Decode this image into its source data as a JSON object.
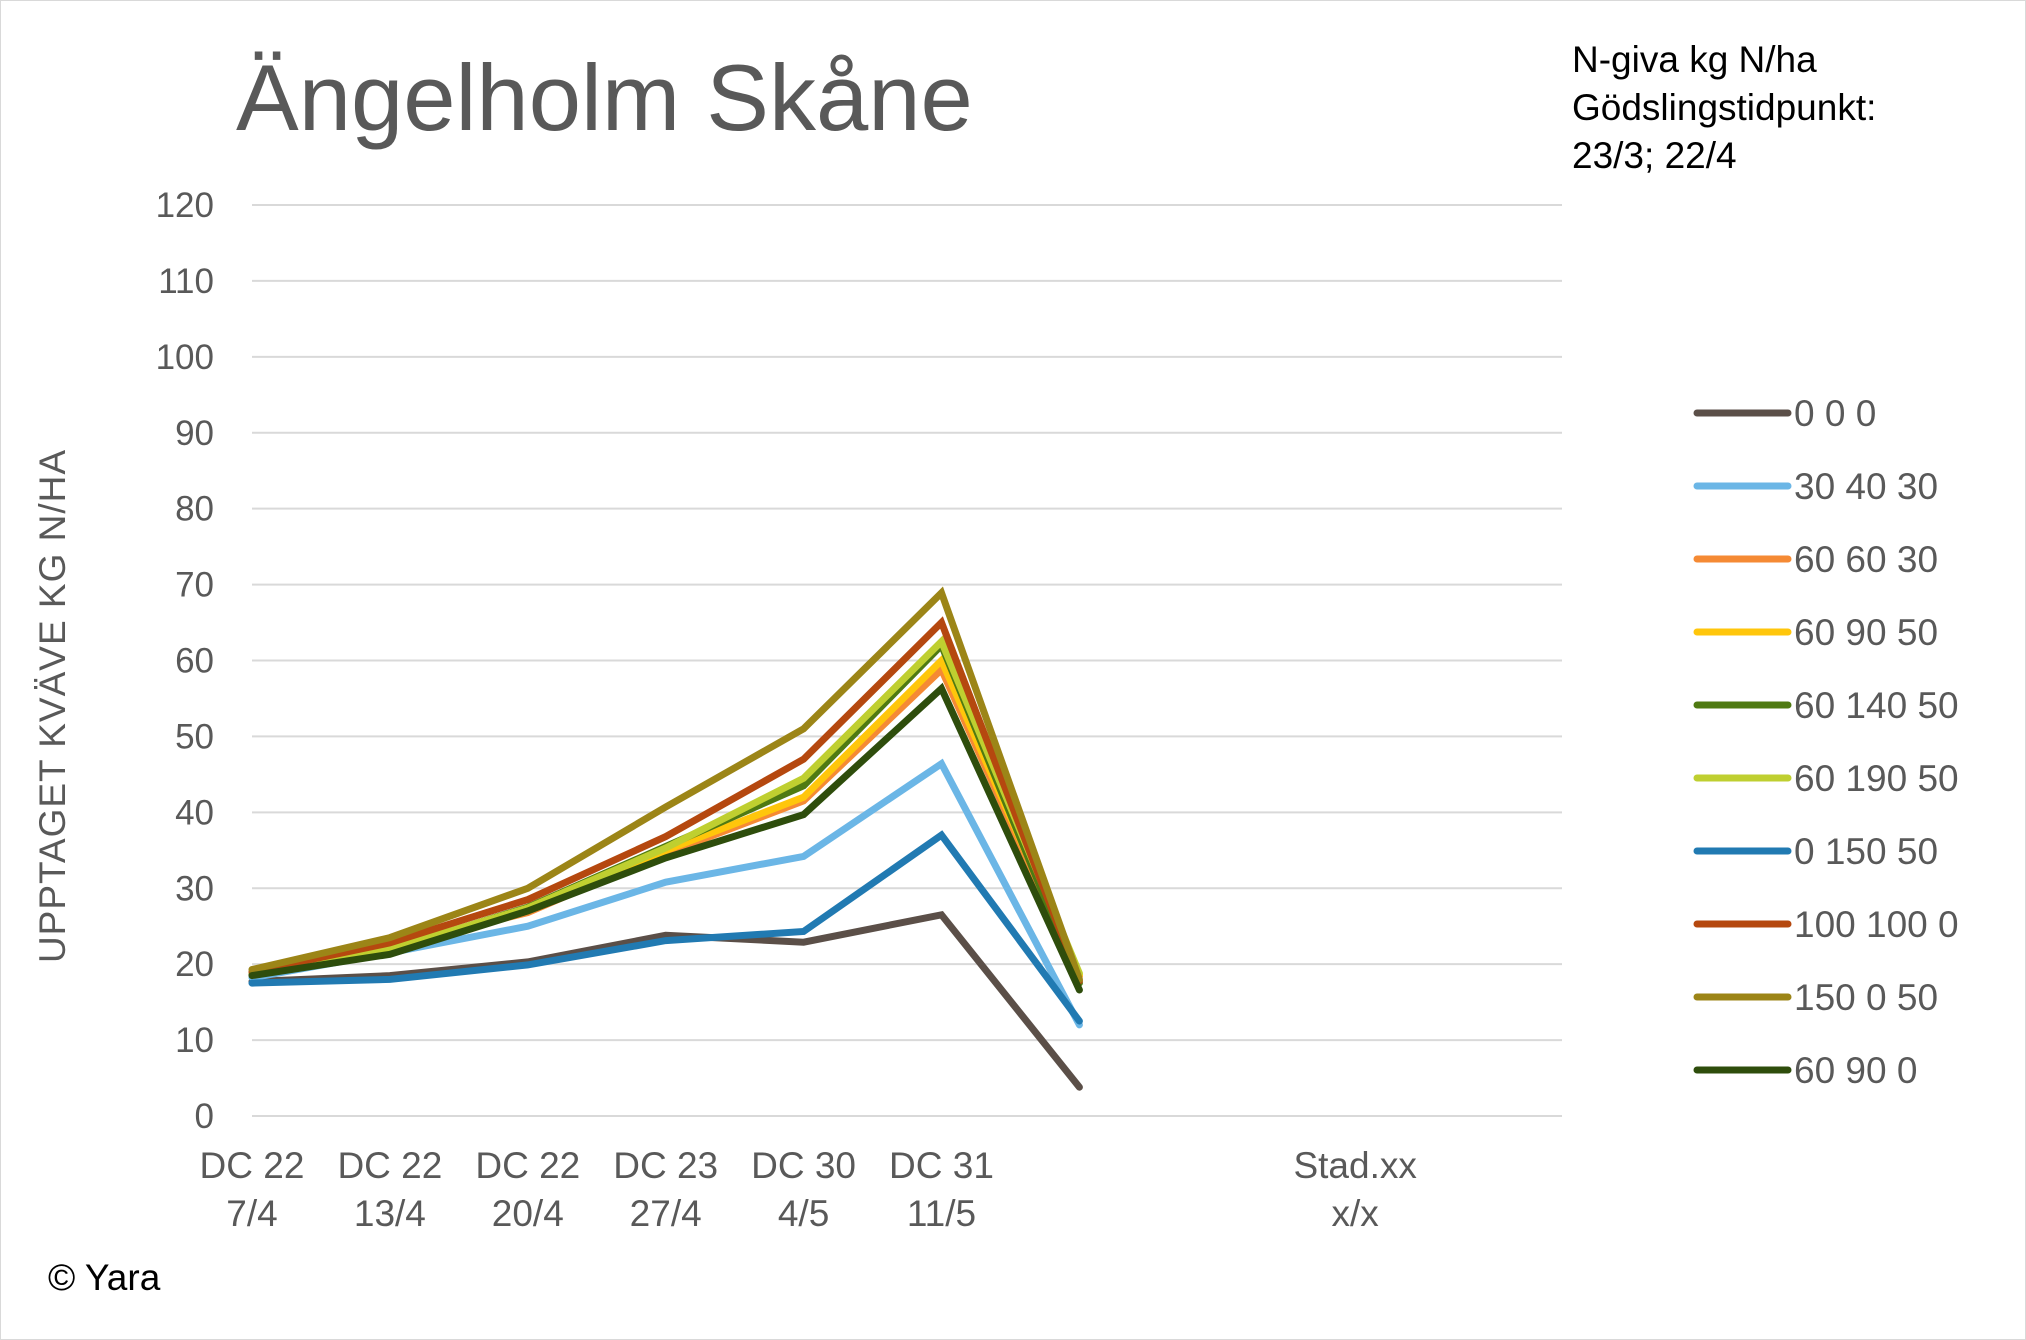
{
  "chart_data": {
    "type": "line",
    "title": "Ängelholm Skåne",
    "subtitle_lines": [
      "N-giva kg N/ha",
      "Gödslingstidpunkt:",
      "23/3; 22/4"
    ],
    "ylabel": "UPPTAGET KVÄVE KG N/HA",
    "xlabel": "",
    "ylim": [
      0,
      120
    ],
    "yticks": [
      0,
      10,
      20,
      30,
      40,
      50,
      60,
      70,
      80,
      90,
      100,
      110,
      120
    ],
    "grid": true,
    "legend_position": "right",
    "categories": [
      [
        "DC 22",
        "7/4"
      ],
      [
        "DC 22",
        "13/4"
      ],
      [
        "DC 22",
        "20/4"
      ],
      [
        "DC 23",
        "27/4"
      ],
      [
        "DC 30",
        "4/5"
      ],
      [
        "DC 31",
        "11/5"
      ],
      [
        "",
        ""
      ],
      [
        "",
        ""
      ],
      [
        "Stad.xx",
        "x/x"
      ]
    ],
    "series": [
      {
        "name": "0 0 0",
        "color": "#5b4f48",
        "values": [
          17.7,
          18.5,
          20.3,
          23.8,
          22.9,
          26.5,
          3.8,
          null,
          null
        ]
      },
      {
        "name": "30 40 30",
        "color": "#6bb6e6",
        "values": [
          18.2,
          21.5,
          25.0,
          30.8,
          34.2,
          46.4,
          12.0,
          null,
          null
        ]
      },
      {
        "name": "60 60 30",
        "color": "#f58a34",
        "values": [
          18.6,
          22.3,
          26.8,
          34.6,
          41.5,
          58.8,
          18.4,
          null,
          null
        ]
      },
      {
        "name": "60 90 50",
        "color": "#ffc60b",
        "values": [
          18.8,
          22.0,
          27.0,
          35.0,
          42.0,
          60.0,
          18.6,
          null,
          null
        ]
      },
      {
        "name": "60 140 50",
        "color": "#4f7a12",
        "values": [
          18.7,
          21.8,
          27.5,
          35.5,
          43.5,
          62.0,
          17.5,
          null,
          null
        ]
      },
      {
        "name": "60 190 50",
        "color": "#bfcf30",
        "values": [
          18.9,
          22.0,
          27.4,
          35.3,
          44.5,
          62.5,
          18.8,
          null,
          null
        ]
      },
      {
        "name": "0 150 50",
        "color": "#217ab2",
        "values": [
          17.5,
          18.0,
          19.9,
          23.1,
          24.3,
          37.0,
          12.5,
          null,
          null
        ]
      },
      {
        "name": "100 100 0",
        "color": "#b5480f",
        "values": [
          19.0,
          22.8,
          28.5,
          36.8,
          47.0,
          65.0,
          17.8,
          null,
          null
        ]
      },
      {
        "name": "150 0 50",
        "color": "#9c8517",
        "values": [
          19.3,
          23.5,
          30.0,
          40.7,
          51.0,
          68.9,
          18.0,
          null,
          null
        ]
      },
      {
        "name": "60 90 0",
        "color": "#2e4d0c",
        "values": [
          18.5,
          21.3,
          27.0,
          34.0,
          39.7,
          56.3,
          16.6,
          null,
          null
        ]
      }
    ]
  },
  "footer": {
    "copyright": "© Yara"
  }
}
